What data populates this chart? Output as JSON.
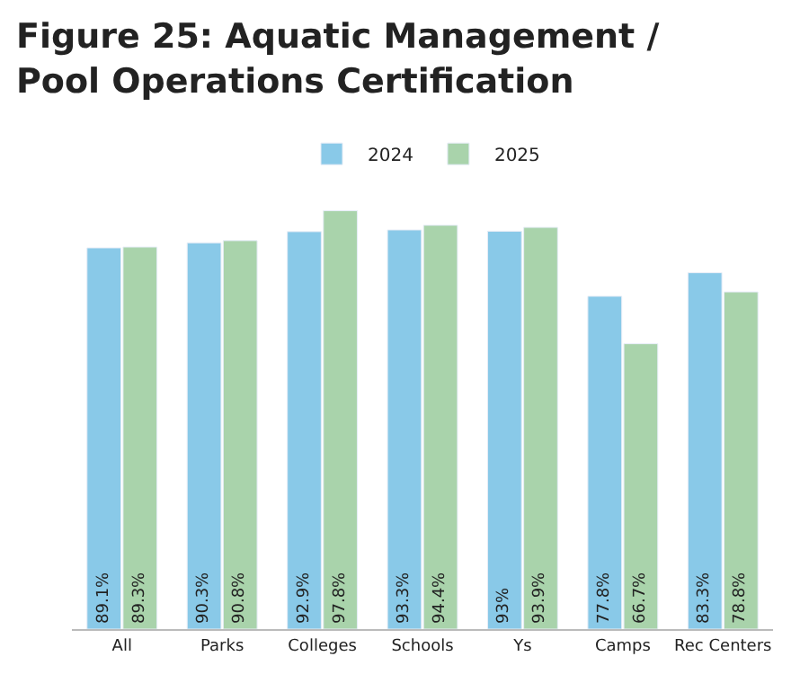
{
  "chart_data": {
    "type": "bar",
    "title": "Figure 25: Aquatic Management /\nPool Operations Certification",
    "categories": [
      "All",
      "Parks",
      "Colleges",
      "Schools",
      "Ys",
      "Camps",
      "Rec Centers"
    ],
    "series": [
      {
        "name": "2024",
        "color": "#89c9e8",
        "values": [
          89.1,
          90.3,
          92.9,
          93.3,
          93,
          77.8,
          83.3
        ],
        "value_labels": [
          "89.1%",
          "90.3%",
          "92.9%",
          "93.3%",
          "93%",
          "77.8%",
          "83.3%"
        ]
      },
      {
        "name": "2025",
        "color": "#a9d3ab",
        "values": [
          89.3,
          90.8,
          97.8,
          94.4,
          93.9,
          66.7,
          78.8
        ],
        "value_labels": [
          "89.3%",
          "90.8%",
          "97.8%",
          "94.4%",
          "93.9%",
          "66.7%",
          "78.8%"
        ]
      }
    ],
    "tick_labels": "x",
    "legend": "top"
  }
}
